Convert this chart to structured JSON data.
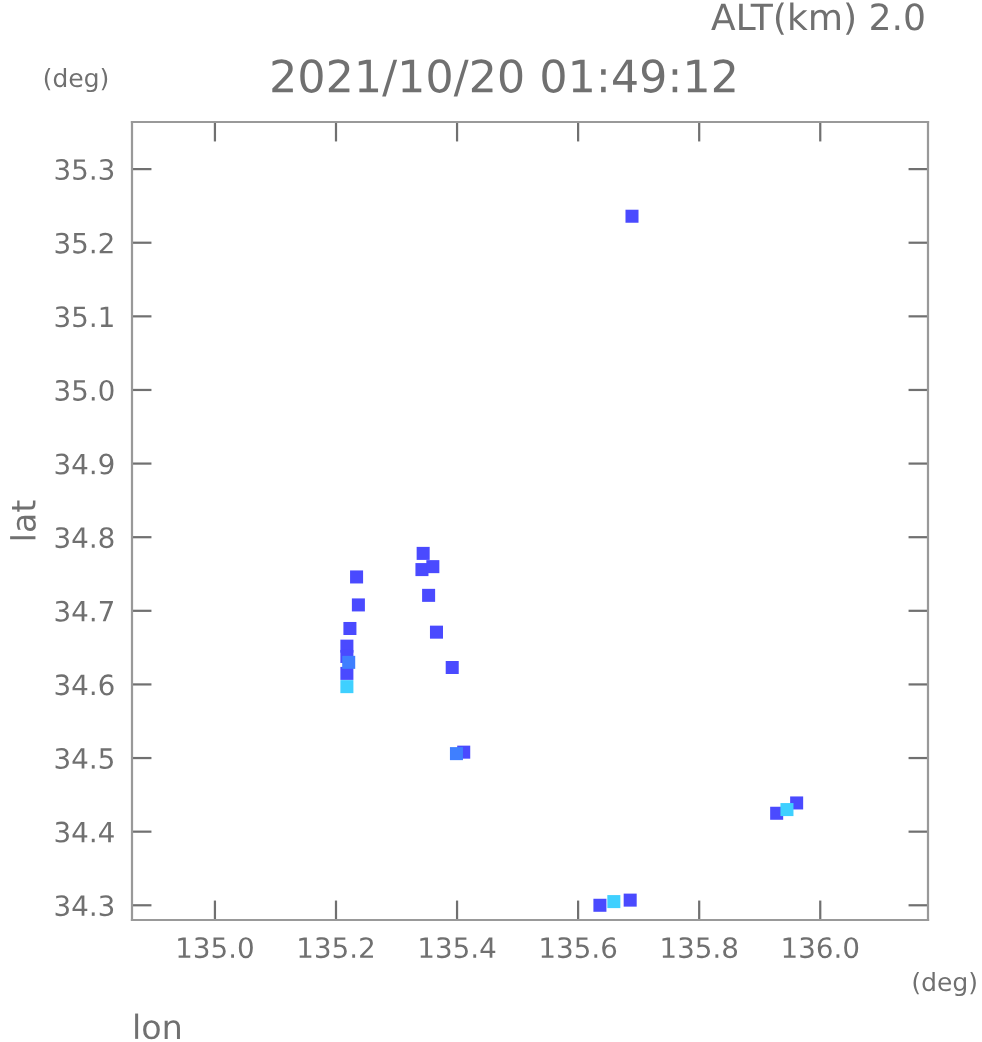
{
  "chart_data": {
    "type": "scatter",
    "title": "2021/10/20 01:49:12",
    "subtitle": "ALT(km) 2.0",
    "xlabel": "lon",
    "ylabel": "lat",
    "annotations": [
      "(deg)",
      "(deg)"
    ],
    "xlim": [
      134.863,
      136.178
    ],
    "ylim": [
      34.28,
      35.364
    ],
    "xticks": [
      {
        "value": 135.0,
        "label": "135.0"
      },
      135.2,
      135.4,
      135.6,
      135.8,
      {
        "value": 136.0,
        "label": "136.0"
      }
    ],
    "yticks": [
      35.3,
      35.2,
      35.1,
      {
        "value": 35.0,
        "label": "35.0"
      },
      34.9,
      34.8,
      34.7,
      34.6,
      34.5,
      34.4,
      34.3
    ],
    "marker": "square",
    "grid": false,
    "legend": false,
    "series": [
      {
        "color": "#4a4aff",
        "x": [
          135.689,
          135.344,
          135.342,
          135.36,
          135.234,
          135.237,
          135.353,
          135.366,
          135.392,
          135.223,
          135.218,
          135.218,
          135.218,
          135.411,
          135.928,
          135.636,
          135.686,
          135.961
        ],
        "values": [
          35.236,
          34.778,
          34.756,
          34.76,
          34.746,
          34.708,
          34.721,
          34.671,
          34.623,
          34.676,
          34.652,
          34.638,
          34.615,
          34.508,
          34.425,
          34.3,
          34.307,
          34.439
        ]
      },
      {
        "color": "#3f7fff",
        "x": [
          135.399,
          135.221
        ],
        "values": [
          34.506,
          34.63
        ]
      },
      {
        "color": "#3fd0ff",
        "x": [
          135.218,
          135.945,
          135.659
        ],
        "values": [
          34.597,
          34.43,
          34.305
        ]
      }
    ]
  }
}
